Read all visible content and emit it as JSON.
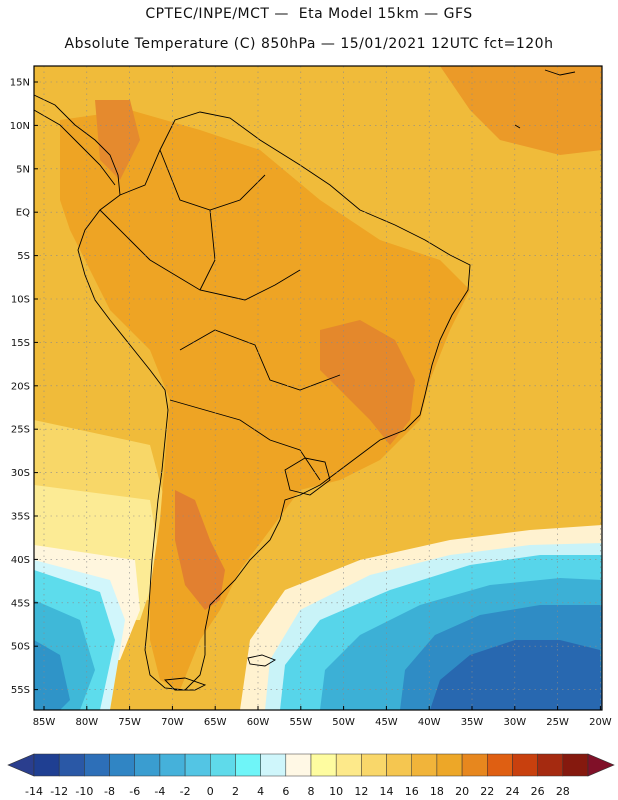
{
  "header": {
    "line1": "CPTEC/INPE/MCT —  Eta Model 15km — GFS",
    "line2": "Absolute Temperature (C) 850hPa — 15/01/2021 12UTC fct=120h"
  },
  "map": {
    "lat_labels": [
      "15N",
      "10N",
      "5N",
      "EQ",
      "5S",
      "10S",
      "15S",
      "20S",
      "25S",
      "30S",
      "35S",
      "40S",
      "45S",
      "50S",
      "55S"
    ],
    "lon_labels": [
      "85W",
      "80W",
      "75W",
      "70W",
      "65W",
      "60W",
      "55W",
      "50W",
      "45W",
      "40W",
      "35W",
      "30W",
      "25W",
      "20W"
    ],
    "regions": [
      {
        "name": "background-warm-field",
        "color": "#f0bb3a"
      },
      {
        "name": "pacific-mid-latitude-band",
        "color": "#f8d768"
      },
      {
        "name": "pacific-yellow-band",
        "color": "#fceb95"
      },
      {
        "name": "pacific-cream-band",
        "color": "#fff6de"
      },
      {
        "name": "south-pacific-light-cyan",
        "color": "#d1f6fb"
      },
      {
        "name": "south-pacific-cyan",
        "color": "#5ddcec"
      },
      {
        "name": "south-pacific-blue",
        "color": "#3fb8d8"
      },
      {
        "name": "south-pacific-deep-blue",
        "color": "#2f94c8"
      },
      {
        "name": "south-atlantic-cream",
        "color": "#fff2d0"
      },
      {
        "name": "south-atlantic-light-cyan",
        "color": "#c9f3f8"
      },
      {
        "name": "south-atlantic-cyan",
        "color": "#57d5ea"
      },
      {
        "name": "south-atlantic-blue",
        "color": "#3cb0d6"
      },
      {
        "name": "south-atlantic-mid-blue",
        "color": "#2f8cc5"
      },
      {
        "name": "south-atlantic-deep-blue",
        "color": "#2868b0"
      },
      {
        "name": "continent-warm",
        "color": "#eea424"
      },
      {
        "name": "north-atlantic-warm",
        "color": "#eb9a28"
      },
      {
        "name": "brazil-hot-spot",
        "color": "#e4882c"
      },
      {
        "name": "argentina-hot-spot",
        "color": "#e28030"
      },
      {
        "name": "andes-hot-spot",
        "color": "#e58a2e"
      }
    ]
  },
  "colorbar": {
    "labels": [
      "-14",
      "-12",
      "-10",
      "-8",
      "-6",
      "-4",
      "-2",
      "0",
      "2",
      "4",
      "6",
      "8",
      "10",
      "12",
      "14",
      "16",
      "18",
      "20",
      "22",
      "24",
      "26",
      "28"
    ],
    "colors": [
      "#1f3f92",
      "#2a58a6",
      "#2d6fb8",
      "#3085c4",
      "#3a9dd0",
      "#45b1da",
      "#53c5e4",
      "#5fdaea",
      "#6ff5f8",
      "#cff6fb",
      "#fff8e5",
      "#fefca0",
      "#fde98a",
      "#f9d76a",
      "#f5c650",
      "#f1b43a",
      "#eda728",
      "#e7871e",
      "#df5f12",
      "#c8400e",
      "#a52a10",
      "#85190e"
    ],
    "under_color": "#2a3e8e",
    "over_color": "#801028"
  }
}
